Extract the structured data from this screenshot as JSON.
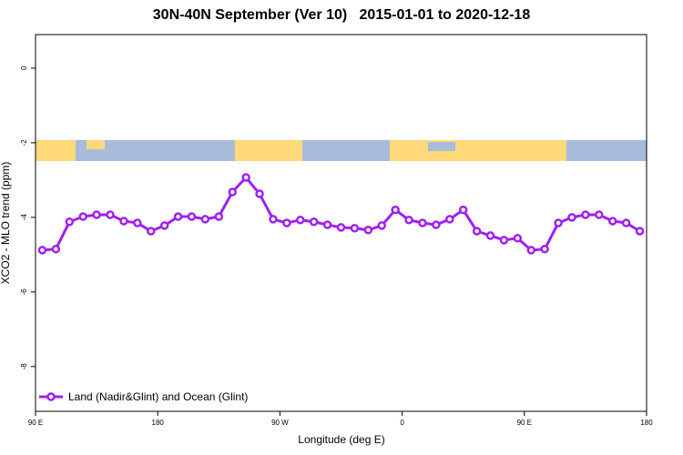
{
  "chart_data": {
    "type": "line",
    "title": "30N-40N September (Ver 10)   2015-01-01 to 2020-12-18",
    "x_label": "Longitude (deg E)",
    "y_label": "XCO2 - MLO trend (ppm)",
    "x": [
      95,
      105,
      115,
      125,
      135,
      145,
      155,
      165,
      175,
      185,
      195,
      205,
      215,
      225,
      235,
      245,
      255,
      265,
      275,
      285,
      295,
      305,
      315,
      325,
      335,
      345,
      355,
      365,
      375,
      385,
      395,
      405,
      415,
      425,
      435,
      445,
      455,
      465,
      475,
      485,
      495,
      505,
      515,
      525,
      535
    ],
    "series": [
      {
        "name": "Land (Nadir&Glint) and Ocean (Glint)",
        "color": "#a020f0",
        "values": [
          -4.88,
          -4.85,
          -4.12,
          -3.98,
          -3.93,
          -3.93,
          -4.1,
          -4.15,
          -4.37,
          -4.22,
          -3.98,
          -3.98,
          -4.05,
          -3.98,
          -3.32,
          -2.93,
          -3.37,
          -4.05,
          -4.15,
          -4.07,
          -4.12,
          -4.2,
          -4.27,
          -4.29,
          -4.34,
          -4.22,
          -3.8,
          -4.07,
          -4.15,
          -4.2,
          -4.05,
          -3.8,
          -4.37,
          -4.49,
          -4.61,
          -4.56,
          -4.88,
          -4.85,
          -4.15,
          -4.0,
          -3.93,
          -3.93,
          -4.1,
          -4.15,
          -4.37
        ]
      }
    ],
    "xlim": [
      90,
      540
    ],
    "xticks": [
      {
        "value": 90,
        "label": "90 E"
      },
      180,
      {
        "value": 270,
        "label": "90 W"
      },
      {
        "value": 360,
        "label": "0"
      },
      {
        "value": 450,
        "label": "90 E"
      },
      {
        "value": 540,
        "label": "180"
      }
    ],
    "ylim": [
      0.9,
      -9.2
    ],
    "yticks": [
      0,
      -2,
      -4,
      -6,
      -8
    ],
    "legend": "bottom-left"
  }
}
